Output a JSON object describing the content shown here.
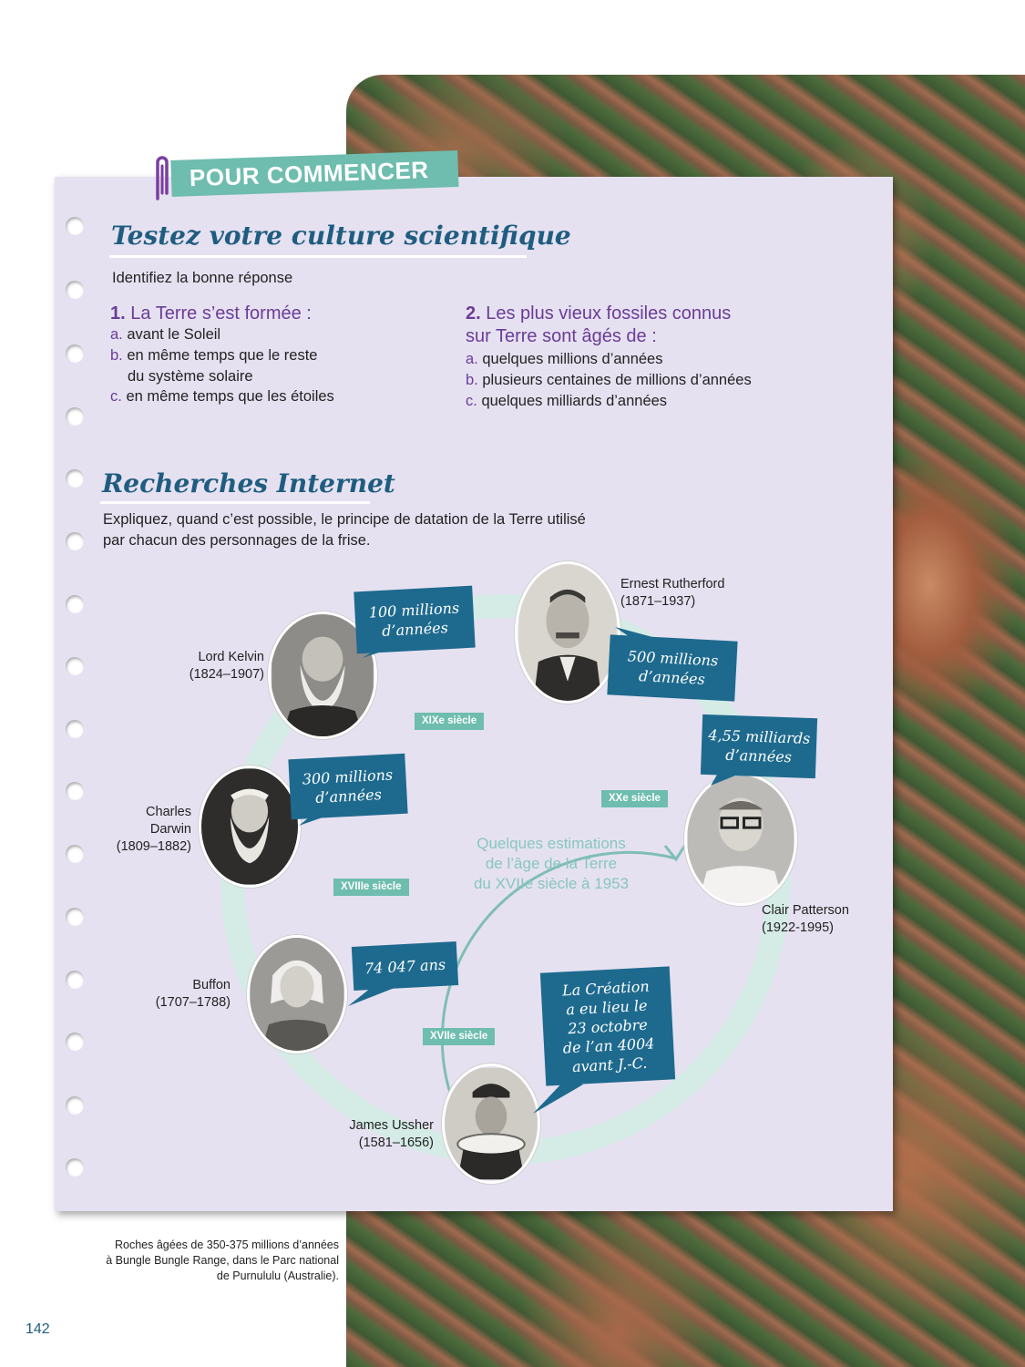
{
  "banner": "POUR COMMENCER",
  "section1": {
    "title": "Testez votre culture scientifique",
    "instruction": "Identifiez la bonne réponse",
    "q1": {
      "num": "1.",
      "title": "La Terre s’est formée :",
      "options": [
        {
          "letter": "a.",
          "text": "avant le Soleil"
        },
        {
          "letter": "b.",
          "text": "en même temps que le reste"
        },
        {
          "letter": "",
          "text": "du système solaire"
        },
        {
          "letter": "c.",
          "text": "en même temps que les étoiles"
        }
      ]
    },
    "q2": {
      "num": "2.",
      "title_line1": "Les plus vieux fossiles connus",
      "title_line2": "sur Terre sont âgés de :",
      "options": [
        {
          "letter": "a.",
          "text": "quelques millions d’années"
        },
        {
          "letter": "b.",
          "text": "plusieurs centaines de millions d’années"
        },
        {
          "letter": "c.",
          "text": "quelques milliards d’années"
        }
      ]
    }
  },
  "section2": {
    "title": "Recherches Internet",
    "instruction_line1": "Expliquez, quand c’est possible, le principe de datation de la Terre utilisé",
    "instruction_line2": "par chacun des personnages de la frise."
  },
  "timeline": {
    "center_line1": "Quelques estimations",
    "center_line2": "de l’âge de la Terre",
    "center_line3": "du XVIIe siècle à 1953",
    "centuries": {
      "c17": "XVIIe siècle",
      "c18": "XVIIIe siècle",
      "c19": "XIXe siècle",
      "c20": "XXe siècle"
    },
    "people": {
      "rutherford": {
        "name": "Ernest Rutherford",
        "dates": "(1871–1937)",
        "estimate_line1": "500 millions",
        "estimate_line2": "d’années"
      },
      "kelvin": {
        "name": "Lord Kelvin",
        "dates": "(1824–1907)",
        "estimate_line1": "100 millions",
        "estimate_line2": "d’années"
      },
      "darwin": {
        "name_line1": "Charles",
        "name_line2": "Darwin",
        "dates": "(1809–1882)",
        "estimate_line1": "300 millions",
        "estimate_line2": "d’années"
      },
      "patterson": {
        "name": "Clair Patterson",
        "dates": "(1922-1995)",
        "estimate_line1": "4,55 milliards",
        "estimate_line2": "d’années"
      },
      "buffon": {
        "name": "Buffon",
        "dates": "(1707–1788)",
        "estimate": "74 047 ans"
      },
      "ussher": {
        "name": "James Ussher",
        "dates": "(1581–1656)",
        "estimate_lines": [
          "La Création",
          "a eu lieu le",
          "23 octobre",
          "de l’an 4004",
          "avant J.-C."
        ]
      }
    }
  },
  "caption": {
    "line1": "Roches âgées de 350-375 millions d’années",
    "line2": "à Bungle Bungle Range, dans le Parc national",
    "line3": "de Purnululu (Australie)."
  },
  "page_number": "142",
  "colors": {
    "title_blue": "#1f5d80",
    "purple": "#6a3c96",
    "teal": "#6ebdae",
    "bubble": "#1e6a8e",
    "paper": "#e6e1f1"
  }
}
